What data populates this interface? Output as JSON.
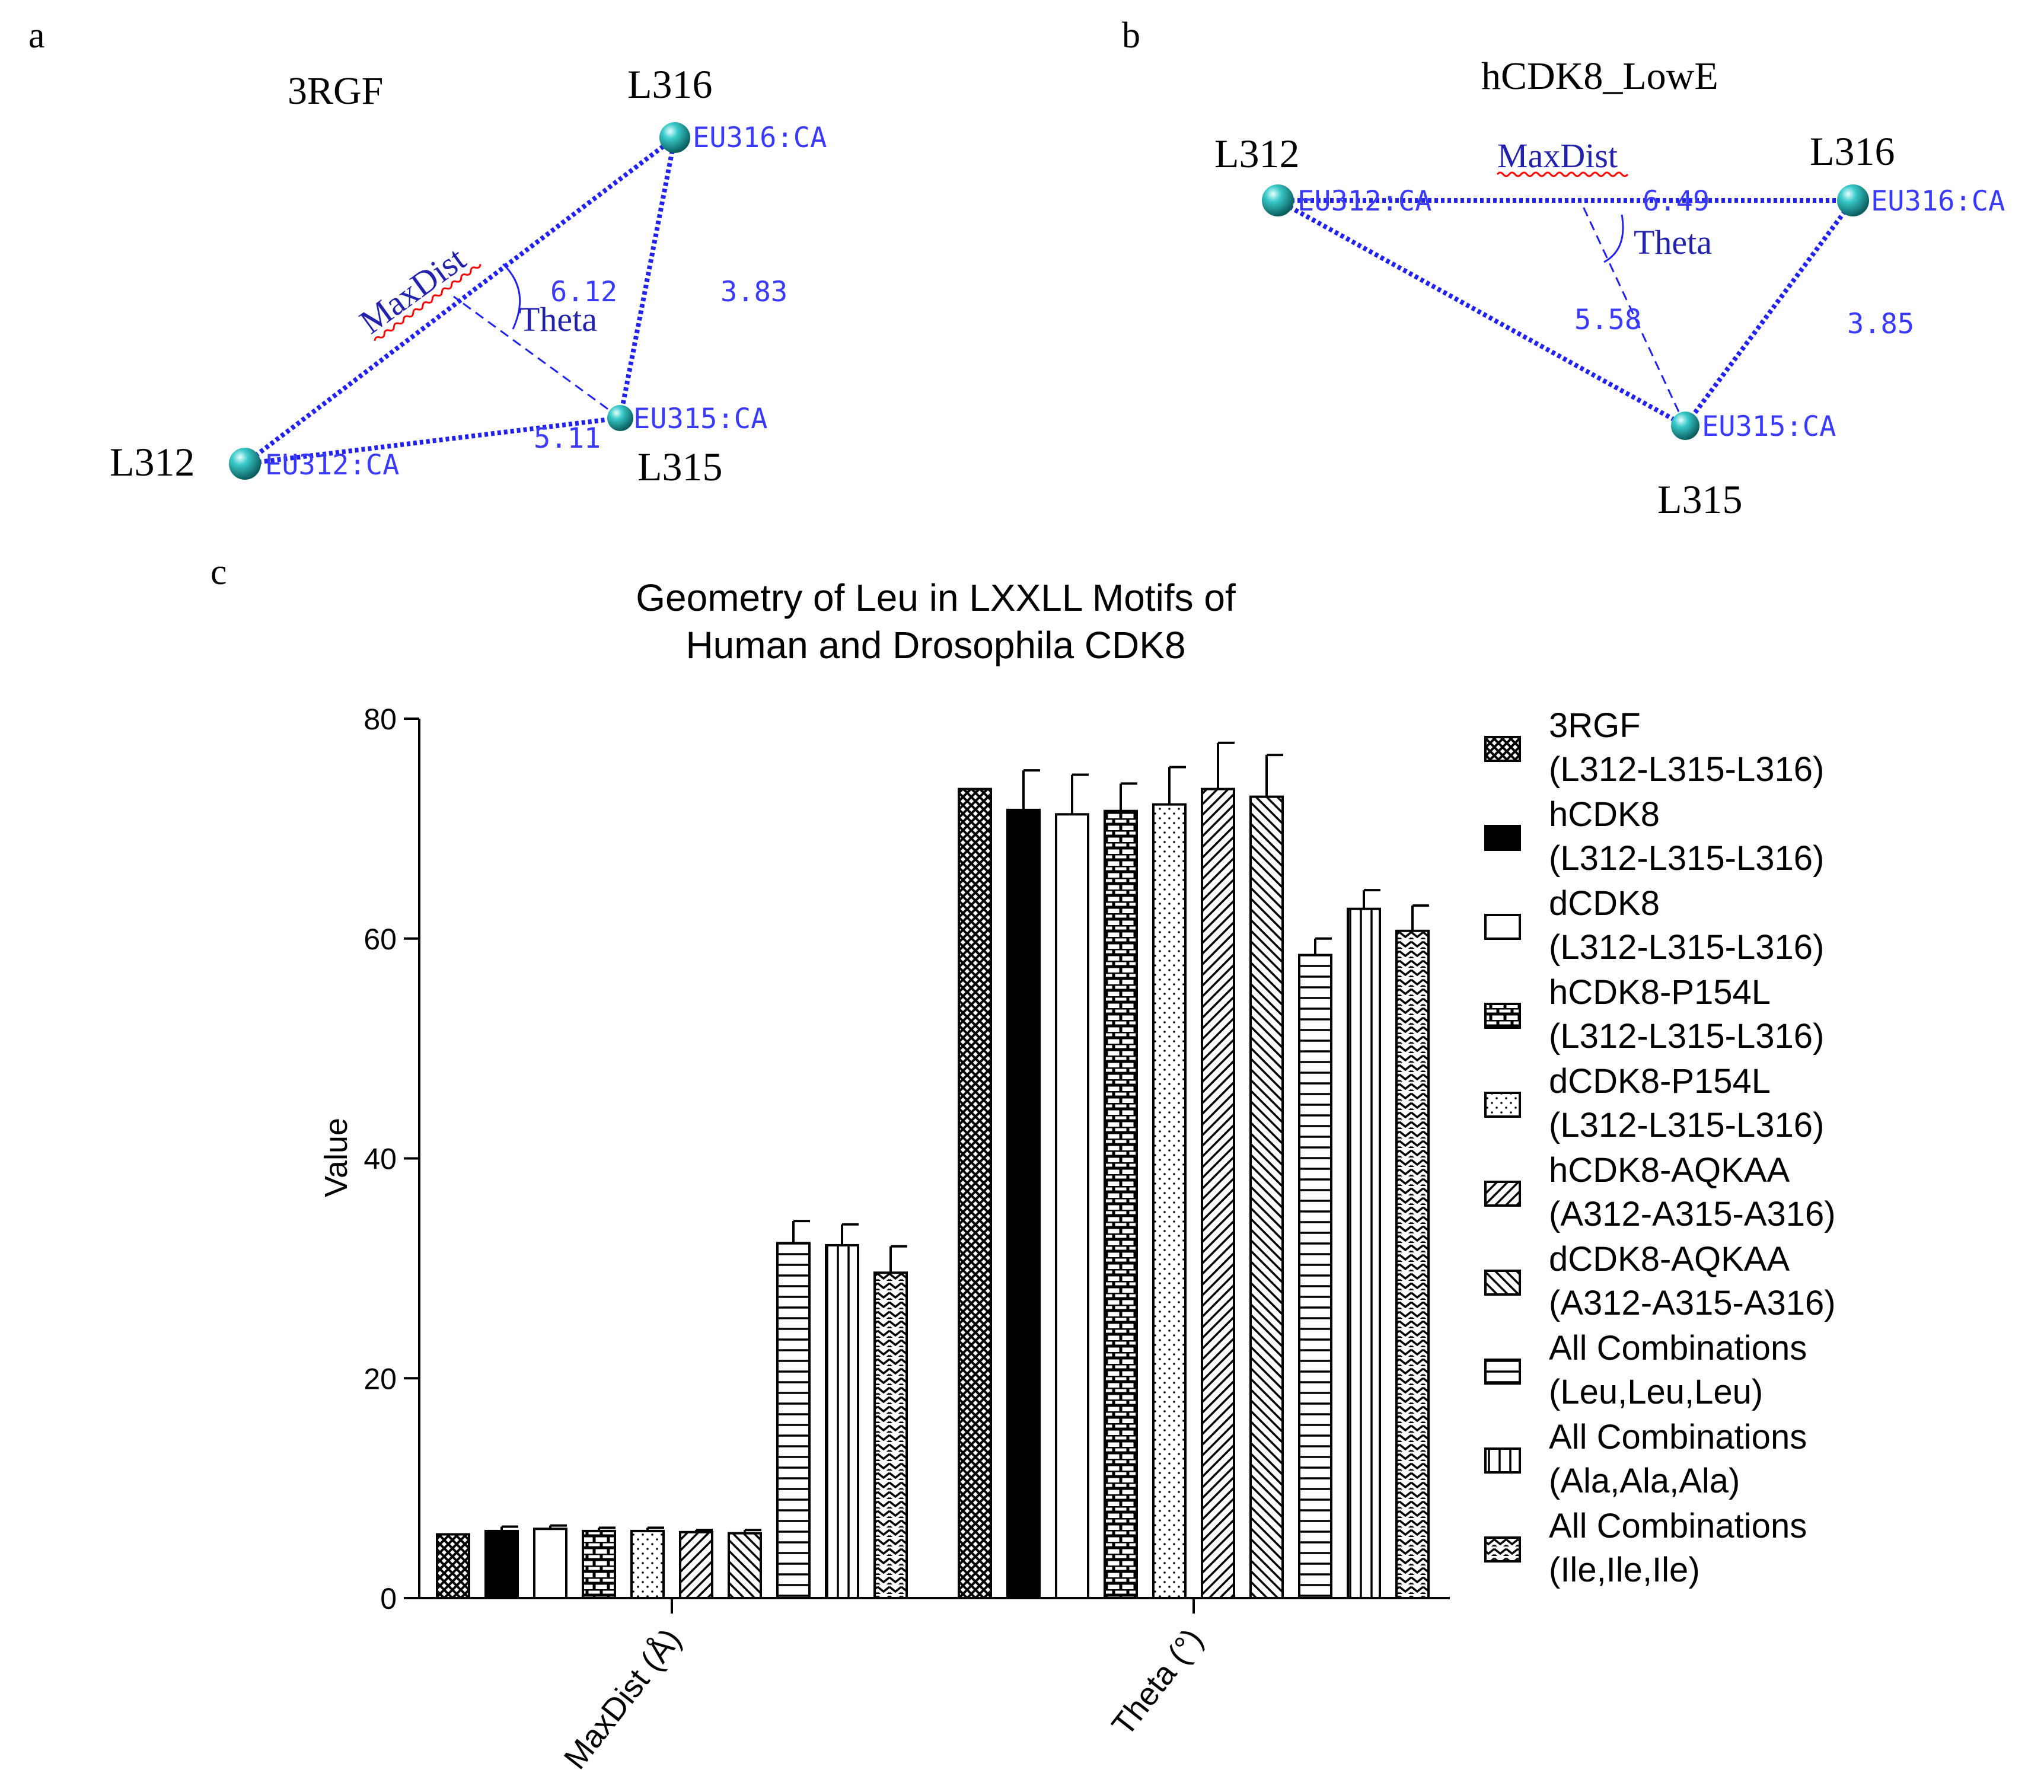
{
  "panel_a": {
    "letter": "a",
    "title": "3RGF",
    "residues": {
      "l312": {
        "label": "L312",
        "atom": "EU312:CA"
      },
      "l315": {
        "label": "L315",
        "atom": "EU315:CA"
      },
      "l316": {
        "label": "L316",
        "atom": "EU316:CA"
      }
    },
    "distances": {
      "d312_316": "6.12",
      "d315_316": "3.83",
      "d312_315": "5.11"
    },
    "maxdist_label": "MaxDist",
    "theta_label": "Theta"
  },
  "panel_b": {
    "letter": "b",
    "title": "hCDK8_LowE",
    "residues": {
      "l312": {
        "label": "L312",
        "atom": "EU312:CA"
      },
      "l315": {
        "label": "L315",
        "atom": "EU315:CA"
      },
      "l316": {
        "label": "L316",
        "atom": "EU316:CA"
      }
    },
    "distances": {
      "d312_316": "6.49",
      "d312_315": "5.58",
      "d315_316": "3.85"
    },
    "maxdist_label": "MaxDist",
    "theta_label": "Theta"
  },
  "panel_c": {
    "letter": "c"
  },
  "colors": {
    "bond": "#2222ee",
    "atom_label": "#3a3aff",
    "sphere": "#1aa7a7",
    "underline": "#ff0000"
  },
  "chart_data": {
    "type": "bar",
    "title_lines": [
      "Geometry of Leu in LXXLL Motifs of",
      "Human and Drosophila CDK8"
    ],
    "ylabel": "Value",
    "ylim": [
      0,
      80
    ],
    "yticks": [
      0,
      20,
      40,
      60,
      80
    ],
    "categories": [
      "MaxDist (Å)",
      "Theta (°)"
    ],
    "legend_position": "right",
    "series": [
      {
        "name": [
          "3RGF",
          "(L312-L315-L316)"
        ],
        "pattern": "cross",
        "values": [
          5.8,
          73.6
        ],
        "errors": [
          0,
          0
        ]
      },
      {
        "name": [
          "hCDK8",
          "(L312-L315-L316)"
        ],
        "pattern": "solid",
        "values": [
          6.1,
          71.7
        ],
        "errors": [
          0.4,
          3.6
        ]
      },
      {
        "name": [
          "dCDK8",
          "(L312-L315-L316)"
        ],
        "pattern": "empty",
        "values": [
          6.3,
          71.3
        ],
        "errors": [
          0.3,
          3.6
        ]
      },
      {
        "name": [
          "hCDK8-P154L",
          "(L312-L315-L316)"
        ],
        "pattern": "brick",
        "values": [
          6.1,
          71.6
        ],
        "errors": [
          0.3,
          2.5
        ]
      },
      {
        "name": [
          "dCDK8-P154L",
          "(L312-L315-L316)"
        ],
        "pattern": "dots",
        "values": [
          6.1,
          72.2
        ],
        "errors": [
          0.3,
          3.4
        ]
      },
      {
        "name": [
          "hCDK8-AQKAA",
          "(A312-A315-A316)"
        ],
        "pattern": "diag-right",
        "values": [
          6.0,
          73.6
        ],
        "errors": [
          0.2,
          4.2
        ]
      },
      {
        "name": [
          "dCDK8-AQKAA",
          "(A312-A315-A316)"
        ],
        "pattern": "diag-left",
        "values": [
          5.9,
          72.9
        ],
        "errors": [
          0.3,
          3.8
        ]
      },
      {
        "name": [
          "All Combinations",
          "(Leu,Leu,Leu)"
        ],
        "pattern": "hlines",
        "values": [
          32.3,
          58.5
        ],
        "errors": [
          2.0,
          1.5
        ]
      },
      {
        "name": [
          "All Combinations",
          "(Ala,Ala,Ala)"
        ],
        "pattern": "vlines",
        "values": [
          32.1,
          62.7
        ],
        "errors": [
          1.9,
          1.7
        ]
      },
      {
        "name": [
          "All Combinations",
          "(Ile,Ile,Ile)"
        ],
        "pattern": "zigzag",
        "values": [
          29.6,
          60.7
        ],
        "errors": [
          2.4,
          2.3
        ]
      }
    ]
  }
}
